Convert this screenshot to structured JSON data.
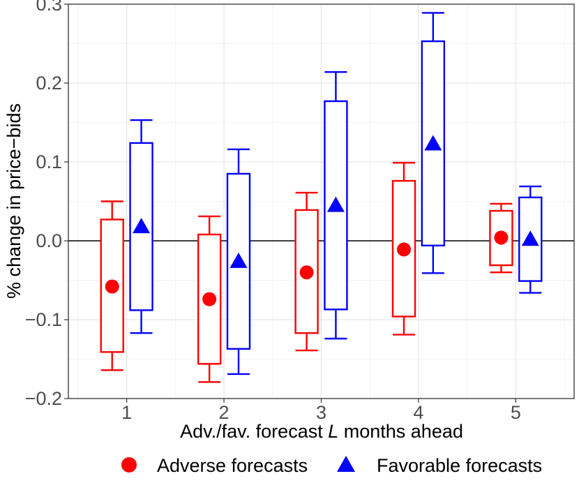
{
  "chart_data": {
    "type": "boxplot-errorbar",
    "title": "",
    "xlabel_prefix": "Adv./fav. forecast ",
    "xlabel_var": "L",
    "xlabel_suffix": " months ahead",
    "ylabel": "% change in price−bids",
    "ylim": [
      -0.2,
      0.3
    ],
    "xlim": [
      0.4,
      5.6
    ],
    "y_ticks": [
      -0.2,
      -0.1,
      0.0,
      0.1,
      0.2,
      0.3
    ],
    "y_tick_labels": [
      "−0.2",
      "−0.1",
      "0.0",
      "0.1",
      "0.2",
      "0.3"
    ],
    "x_ticks": [
      1,
      2,
      3,
      4,
      5
    ],
    "x_tick_labels": [
      "1",
      "2",
      "3",
      "4",
      "5"
    ],
    "reference_line_y": 0,
    "series": [
      {
        "name": "Adverse forecasts",
        "color": "#ff0000",
        "marker": "circle",
        "offset": -0.15,
        "points": [
          {
            "x": 1,
            "estimate": -0.058,
            "box_low": -0.141,
            "box_high": 0.027,
            "whisker_low": -0.164,
            "whisker_high": 0.05
          },
          {
            "x": 2,
            "estimate": -0.074,
            "box_low": -0.156,
            "box_high": 0.008,
            "whisker_low": -0.179,
            "whisker_high": 0.031
          },
          {
            "x": 3,
            "estimate": -0.04,
            "box_low": -0.117,
            "box_high": 0.039,
            "whisker_low": -0.139,
            "whisker_high": 0.061
          },
          {
            "x": 4,
            "estimate": -0.011,
            "box_low": -0.096,
            "box_high": 0.076,
            "whisker_low": -0.119,
            "whisker_high": 0.099
          },
          {
            "x": 5,
            "estimate": 0.004,
            "box_low": -0.031,
            "box_high": 0.038,
            "whisker_low": -0.04,
            "whisker_high": 0.047
          }
        ]
      },
      {
        "name": "Favorable forecasts",
        "color": "#0000ff",
        "marker": "triangle",
        "offset": 0.15,
        "points": [
          {
            "x": 1,
            "estimate": 0.017,
            "box_low": -0.088,
            "box_high": 0.124,
            "whisker_low": -0.117,
            "whisker_high": 0.153
          },
          {
            "x": 2,
            "estimate": -0.027,
            "box_low": -0.137,
            "box_high": 0.085,
            "whisker_low": -0.169,
            "whisker_high": 0.116
          },
          {
            "x": 3,
            "estimate": 0.044,
            "box_low": -0.087,
            "box_high": 0.177,
            "whisker_low": -0.124,
            "whisker_high": 0.214
          },
          {
            "x": 4,
            "estimate": 0.122,
            "box_low": -0.006,
            "box_high": 0.253,
            "whisker_low": -0.041,
            "whisker_high": 0.289
          },
          {
            "x": 5,
            "estimate": 0.001,
            "box_low": -0.051,
            "box_high": 0.055,
            "whisker_low": -0.066,
            "whisker_high": 0.069
          }
        ]
      }
    ],
    "legend_position": "bottom",
    "grid": true
  }
}
